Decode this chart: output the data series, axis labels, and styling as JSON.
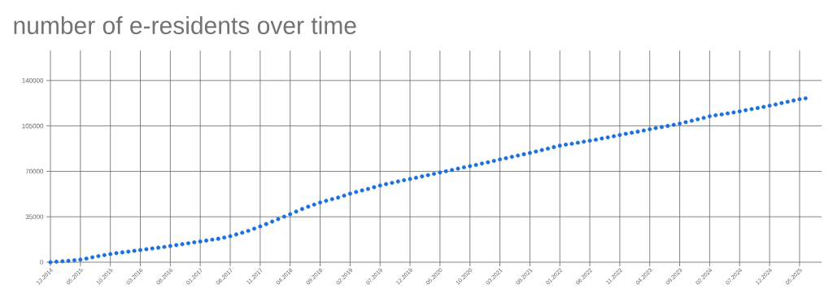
{
  "chart_data": {
    "type": "scatter",
    "title": "number of e-residents over time",
    "categories": [
      "12.2014",
      null,
      null,
      null,
      null,
      "05.2015",
      null,
      null,
      null,
      null,
      "10.2015",
      null,
      null,
      null,
      null,
      "03.2016",
      null,
      null,
      null,
      null,
      "08.2016",
      null,
      null,
      null,
      null,
      "01.2017",
      null,
      null,
      null,
      null,
      "06.2017",
      null,
      null,
      null,
      null,
      "11.2017",
      null,
      null,
      null,
      null,
      "04.2018",
      null,
      null,
      null,
      null,
      "09.2018",
      null,
      null,
      null,
      null,
      "02.2019",
      null,
      null,
      null,
      null,
      "07.2019",
      null,
      null,
      null,
      null,
      "12.2019",
      null,
      null,
      null,
      null,
      "05.2020",
      null,
      null,
      null,
      null,
      "10.2020",
      null,
      null,
      null,
      null,
      "03.2021",
      null,
      null,
      null,
      null,
      "08.2021",
      null,
      null,
      null,
      null,
      "01.2022",
      null,
      null,
      null,
      null,
      "06.2022",
      null,
      null,
      null,
      null,
      "11.2022",
      null,
      null,
      null,
      null,
      "04.2023",
      null,
      null,
      null,
      null,
      "09.2023",
      null,
      null,
      null,
      null,
      "02.2024",
      null,
      null,
      null,
      null,
      "07.2024",
      null,
      null,
      null,
      null,
      "12.2024",
      null,
      null,
      null,
      null,
      "05.2025",
      null
    ],
    "values": [
      0,
      400,
      800,
      1100,
      1500,
      2000,
      2800,
      3800,
      4700,
      5500,
      6300,
      7000,
      7600,
      8200,
      8800,
      9400,
      10000,
      10600,
      11200,
      11800,
      12500,
      13200,
      13900,
      14600,
      15300,
      16000,
      16700,
      17400,
      18100,
      19000,
      20100,
      21400,
      22700,
      24200,
      25900,
      27600,
      29400,
      31300,
      33200,
      35100,
      37000,
      39000,
      41000,
      42800,
      44400,
      46000,
      47300,
      48600,
      49800,
      51300,
      52800,
      54100,
      55300,
      56500,
      57800,
      59100,
      60200,
      61200,
      62200,
      63200,
      64100,
      65100,
      66100,
      67100,
      68100,
      69100,
      70100,
      71100,
      72100,
      73100,
      74000,
      75000,
      76000,
      77000,
      78100,
      79200,
      80200,
      81200,
      82200,
      83200,
      84200,
      85300,
      86400,
      87500,
      88700,
      89800,
      90600,
      91300,
      92100,
      92900,
      93600,
      94400,
      95300,
      96200,
      97100,
      98000,
      98900,
      99800,
      100600,
      101500,
      102400,
      103300,
      104200,
      105000,
      105900,
      106800,
      107900,
      109000,
      110100,
      111200,
      112400,
      113200,
      113900,
      114700,
      115400,
      116200,
      117100,
      118000,
      118800,
      119700,
      120600,
      121600,
      122600,
      123600,
      124600,
      125600,
      126300
    ],
    "color": "#1a6fdc",
    "marker": "circle",
    "grid": true,
    "ylim": [
      0,
      160000
    ],
    "yticks": [
      0,
      35000,
      70000,
      105000,
      140000
    ]
  }
}
